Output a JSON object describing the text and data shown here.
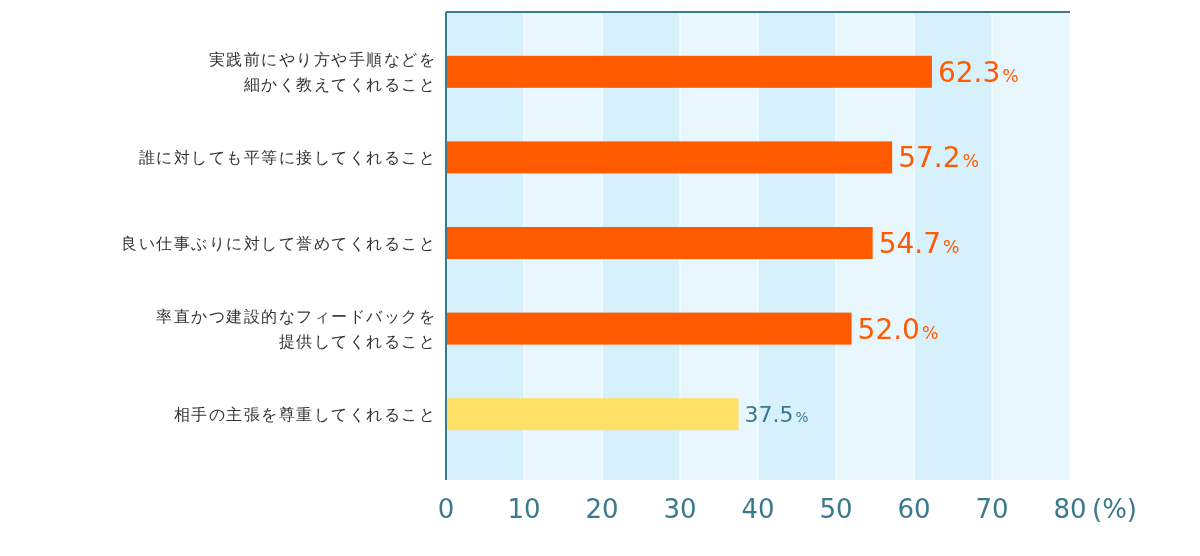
{
  "chart_data": {
    "type": "bar",
    "orientation": "horizontal",
    "categories": [
      "実践前にやり方や手順などを細かく教えてくれること",
      "誰に対しても平等に接してくれること",
      "良い仕事ぶりに対して誉めてくれること",
      "率直かつ建設的なフィードバックを提供してくれること",
      "相手の主張を尊重してくれること"
    ],
    "values": [
      62.3,
      57.2,
      54.7,
      52.0,
      37.5
    ],
    "colors": [
      "#ff5a00",
      "#ff5a00",
      "#ff5a00",
      "#ff5a00",
      "#ffe066"
    ],
    "value_labels": [
      "62.3%",
      "57.2%",
      "54.7%",
      "52.0%",
      "37.5%"
    ],
    "xlim": [
      0,
      80
    ],
    "xticks": [
      0,
      10,
      20,
      30,
      40,
      50,
      60,
      70,
      80
    ],
    "xlabel": "(%)",
    "grid": "x"
  }
}
